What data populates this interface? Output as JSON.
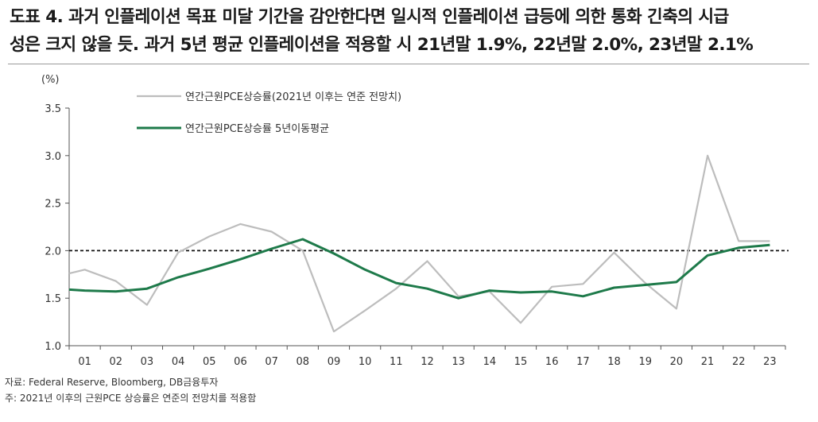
{
  "title_line1": "도표 4. 과거 인플레이션 목표 미달 기간을 감안한다면 일시적 인플레이션 급등에 의한 통화 긴축의 시급",
  "title_line2": "성은 크지 않을 듯. 과거 5년 평균 인플레이션을 적용할 시 21년말 1.9%, 22년말 2.0%, 23년말 2.1%",
  "source": "자료: Federal Reserve, Bloomberg, DB금융투자",
  "note": "주: 2021년 이후의 근원PCE 상승률은 연준의 전망치를 적용함",
  "colors": {
    "gray_series": "#bdbdbd",
    "green_series": "#1e7a4a",
    "reference_line": "#111111"
  },
  "chart_data": {
    "type": "line",
    "title": "",
    "unit_label": "(%)",
    "categories": [
      "01",
      "02",
      "03",
      "04",
      "05",
      "06",
      "07",
      "08",
      "09",
      "10",
      "11",
      "12",
      "13",
      "14",
      "15",
      "16",
      "17",
      "18",
      "19",
      "20",
      "21",
      "22",
      "23"
    ],
    "ylim": [
      1.0,
      3.5
    ],
    "yticks": [
      "1.0",
      "1.5",
      "2.0",
      "2.5",
      "3.0",
      "3.5"
    ],
    "grid": false,
    "legend_position": "top-left",
    "reference_line": {
      "y": 2.0,
      "style": "dashed"
    },
    "series": [
      {
        "name": "연간근원PCE상승률(2021년 이후는 연준 전망치)",
        "color": "#bdbdbd",
        "start": 1.76,
        "values": [
          1.8,
          1.68,
          1.43,
          1.98,
          2.15,
          2.28,
          2.2,
          2.0,
          1.15,
          1.37,
          1.6,
          1.89,
          1.52,
          1.57,
          1.24,
          1.62,
          1.65,
          1.98,
          1.66,
          1.39,
          3.0,
          2.1,
          2.1
        ]
      },
      {
        "name": "연간근원PCE상승률 5년이동평균",
        "color": "#1e7a4a",
        "start": 1.59,
        "values": [
          1.58,
          1.57,
          1.6,
          1.72,
          1.81,
          1.91,
          2.02,
          2.12,
          1.97,
          1.8,
          1.66,
          1.6,
          1.5,
          1.58,
          1.56,
          1.57,
          1.52,
          1.61,
          1.64,
          1.67,
          1.95,
          2.03,
          2.06
        ]
      }
    ]
  }
}
